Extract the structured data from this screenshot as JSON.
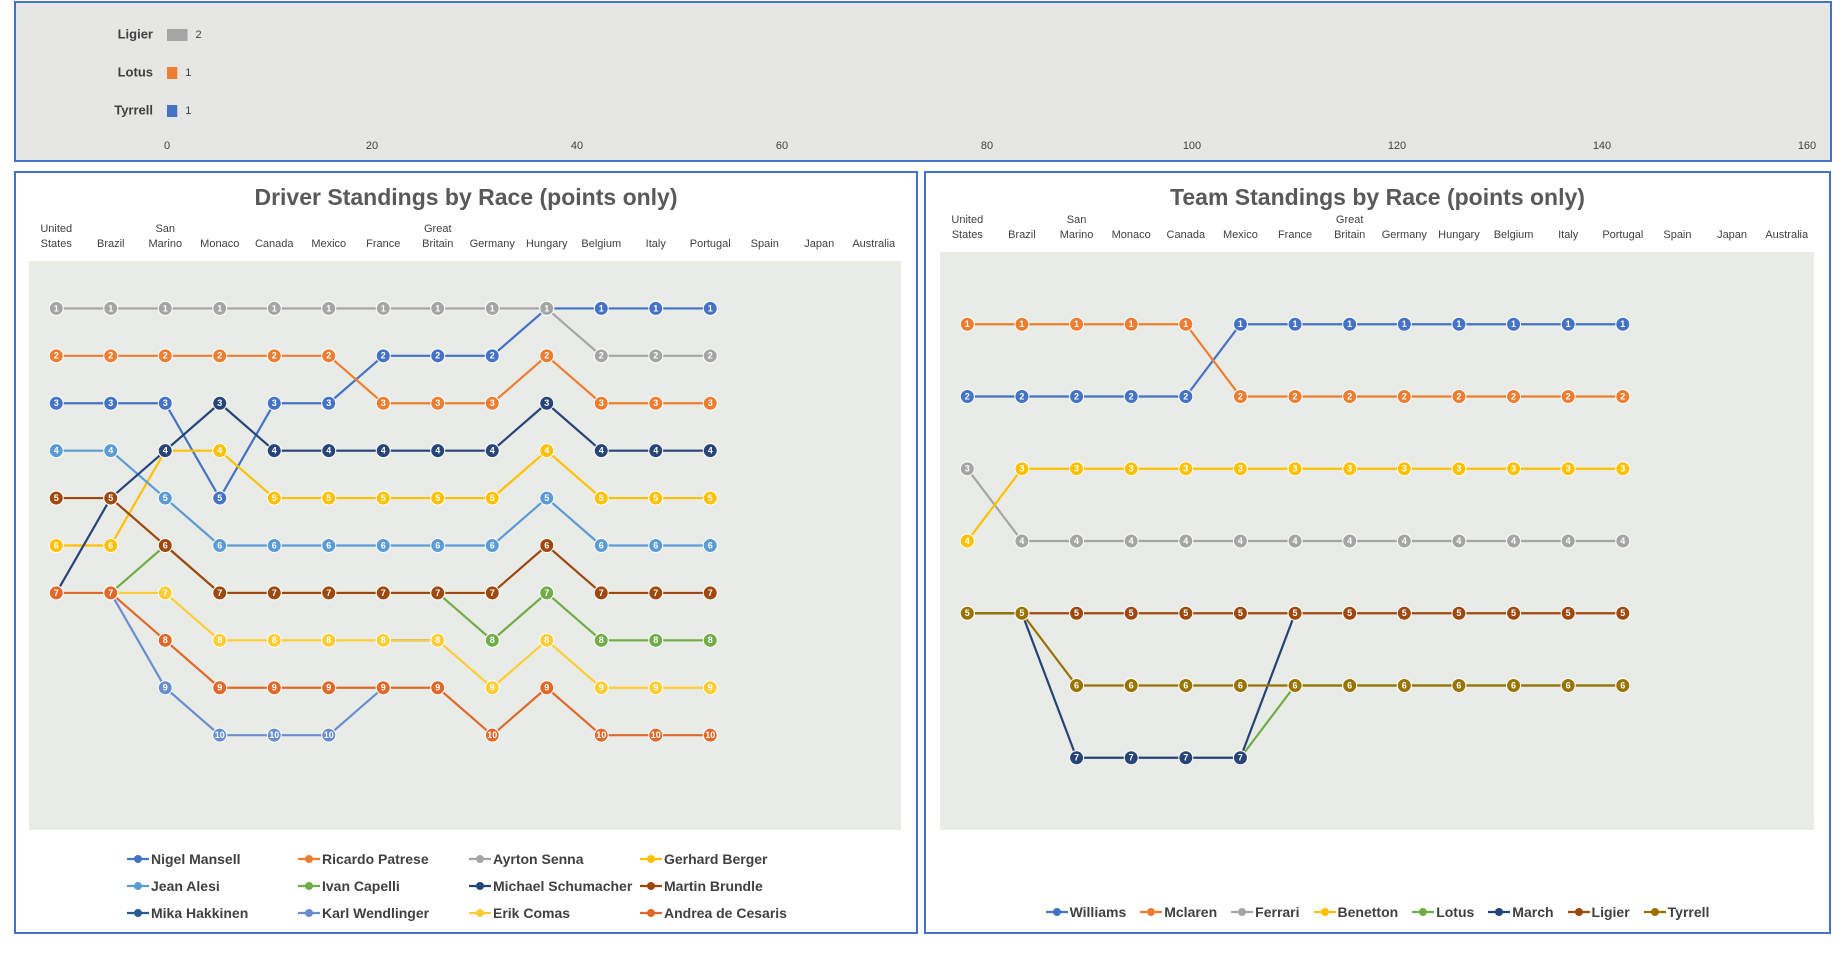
{
  "chart_data": [
    {
      "type": "bar",
      "orientation": "horizontal",
      "categories": [
        "Ligier",
        "Lotus",
        "Tyrrell"
      ],
      "values": [
        2,
        1,
        1
      ],
      "colors": [
        "#a5a5a5",
        "#ed7d31",
        "#4472c4"
      ],
      "xlim": [
        0,
        160
      ],
      "xticks": [
        0,
        20,
        40,
        60,
        80,
        100,
        120,
        140,
        160
      ]
    },
    {
      "type": "line",
      "title": "Driver Standings by Race (points only)",
      "categories": [
        "United States",
        "Brazil",
        "San Marino",
        "Monaco",
        "Canada",
        "Mexico",
        "France",
        "Great Britain",
        "Germany",
        "Hungary",
        "Belgium",
        "Italy",
        "Portugal",
        "Spain",
        "Japan",
        "Australia"
      ],
      "ylim": [
        12,
        0
      ],
      "legend": "bottom",
      "series": [
        {
          "name": "Nigel Mansell",
          "color": "#4472c4",
          "values": [
            3,
            3,
            3,
            5,
            3,
            3,
            2,
            2,
            2,
            1,
            1,
            1,
            1,
            null,
            null,
            null
          ]
        },
        {
          "name": "Ricardo Patrese",
          "color": "#ed7d31",
          "values": [
            2,
            2,
            2,
            2,
            2,
            2,
            3,
            3,
            3,
            2,
            3,
            3,
            3,
            null,
            null,
            null
          ]
        },
        {
          "name": "Ayrton Senna",
          "color": "#a5a5a5",
          "values": [
            1,
            1,
            1,
            1,
            1,
            1,
            1,
            1,
            1,
            1,
            2,
            2,
            2,
            null,
            null,
            null
          ]
        },
        {
          "name": "Gerhard Berger",
          "color": "#ffc000",
          "values": [
            6,
            6,
            4,
            4,
            5,
            5,
            5,
            5,
            5,
            4,
            5,
            5,
            5,
            null,
            null,
            null
          ]
        },
        {
          "name": "Jean Alesi",
          "color": "#5b9bd5",
          "values": [
            4,
            4,
            5,
            6,
            6,
            6,
            6,
            6,
            6,
            5,
            6,
            6,
            6,
            null,
            null,
            null
          ]
        },
        {
          "name": "Ivan Capelli",
          "color": "#70ad47",
          "values": [
            null,
            7,
            6,
            7,
            7,
            7,
            7,
            7,
            8,
            7,
            8,
            8,
            8,
            null,
            null,
            null
          ]
        },
        {
          "name": "Michael Schumacher",
          "color": "#264478",
          "values": [
            7,
            5,
            4,
            3,
            4,
            4,
            4,
            4,
            4,
            3,
            4,
            4,
            4,
            null,
            null,
            null
          ]
        },
        {
          "name": "Martin Brundle",
          "color": "#9e480e",
          "values": [
            5,
            5,
            6,
            7,
            7,
            7,
            7,
            7,
            7,
            6,
            7,
            7,
            7,
            null,
            null,
            null
          ]
        },
        {
          "name": "Mika Hakkinen",
          "color": "#255e91",
          "values": [
            null,
            null,
            null,
            null,
            null,
            null,
            8,
            8,
            null,
            null,
            null,
            null,
            null,
            null,
            null,
            null
          ]
        },
        {
          "name": "Karl Wendlinger",
          "color": "#698ed0",
          "values": [
            null,
            7,
            9,
            10,
            10,
            10,
            9,
            null,
            null,
            null,
            null,
            null,
            null,
            null,
            null,
            null
          ]
        },
        {
          "name": "Erik Comas",
          "color": "#ffcd33",
          "values": [
            null,
            7,
            7,
            8,
            8,
            8,
            8,
            8,
            9,
            8,
            9,
            9,
            9,
            null,
            null,
            null
          ]
        },
        {
          "name": "Andrea de Cesaris",
          "color": "#e0692a",
          "values": [
            7,
            7,
            8,
            9,
            9,
            9,
            9,
            9,
            10,
            9,
            10,
            10,
            10,
            null,
            null,
            null
          ]
        }
      ]
    },
    {
      "type": "line",
      "title": "Team Standings by Race (points only)",
      "categories": [
        "United States",
        "Brazil",
        "San Marino",
        "Monaco",
        "Canada",
        "Mexico",
        "France",
        "Great Britain",
        "Germany",
        "Hungary",
        "Belgium",
        "Italy",
        "Portugal",
        "Spain",
        "Japan",
        "Australia"
      ],
      "ylim": [
        8,
        0
      ],
      "legend": "bottom",
      "series": [
        {
          "name": "Williams",
          "color": "#4472c4",
          "values": [
            2,
            2,
            2,
            2,
            2,
            1,
            1,
            1,
            1,
            1,
            1,
            1,
            1,
            null,
            null,
            null
          ]
        },
        {
          "name": "Mclaren",
          "color": "#ed7d31",
          "values": [
            1,
            1,
            1,
            1,
            1,
            2,
            2,
            2,
            2,
            2,
            2,
            2,
            2,
            null,
            null,
            null
          ]
        },
        {
          "name": "Ferrari",
          "color": "#a5a5a5",
          "values": [
            3,
            4,
            4,
            4,
            4,
            4,
            4,
            4,
            4,
            4,
            4,
            4,
            4,
            null,
            null,
            null
          ]
        },
        {
          "name": "Benetton",
          "color": "#ffc000",
          "values": [
            4,
            3,
            3,
            3,
            3,
            3,
            3,
            3,
            3,
            3,
            3,
            3,
            3,
            null,
            null,
            null
          ]
        },
        {
          "name": "Lotus",
          "color": "#70ad47",
          "values": [
            null,
            null,
            null,
            null,
            null,
            7,
            6,
            6,
            6,
            6,
            6,
            6,
            6,
            null,
            null,
            null
          ]
        },
        {
          "name": "March",
          "color": "#264478",
          "values": [
            5,
            5,
            7,
            7,
            7,
            7,
            5,
            null,
            null,
            null,
            null,
            null,
            null,
            null,
            null,
            null
          ]
        },
        {
          "name": "Ligier",
          "color": "#9e480e",
          "values": [
            null,
            5,
            5,
            5,
            5,
            5,
            5,
            5,
            5,
            5,
            5,
            5,
            5,
            null,
            null,
            null
          ]
        },
        {
          "name": "Tyrrell",
          "color": "#997300",
          "values": [
            5,
            5,
            6,
            6,
            6,
            6,
            6,
            6,
            6,
            6,
            6,
            6,
            6,
            null,
            null,
            null
          ]
        }
      ]
    }
  ]
}
